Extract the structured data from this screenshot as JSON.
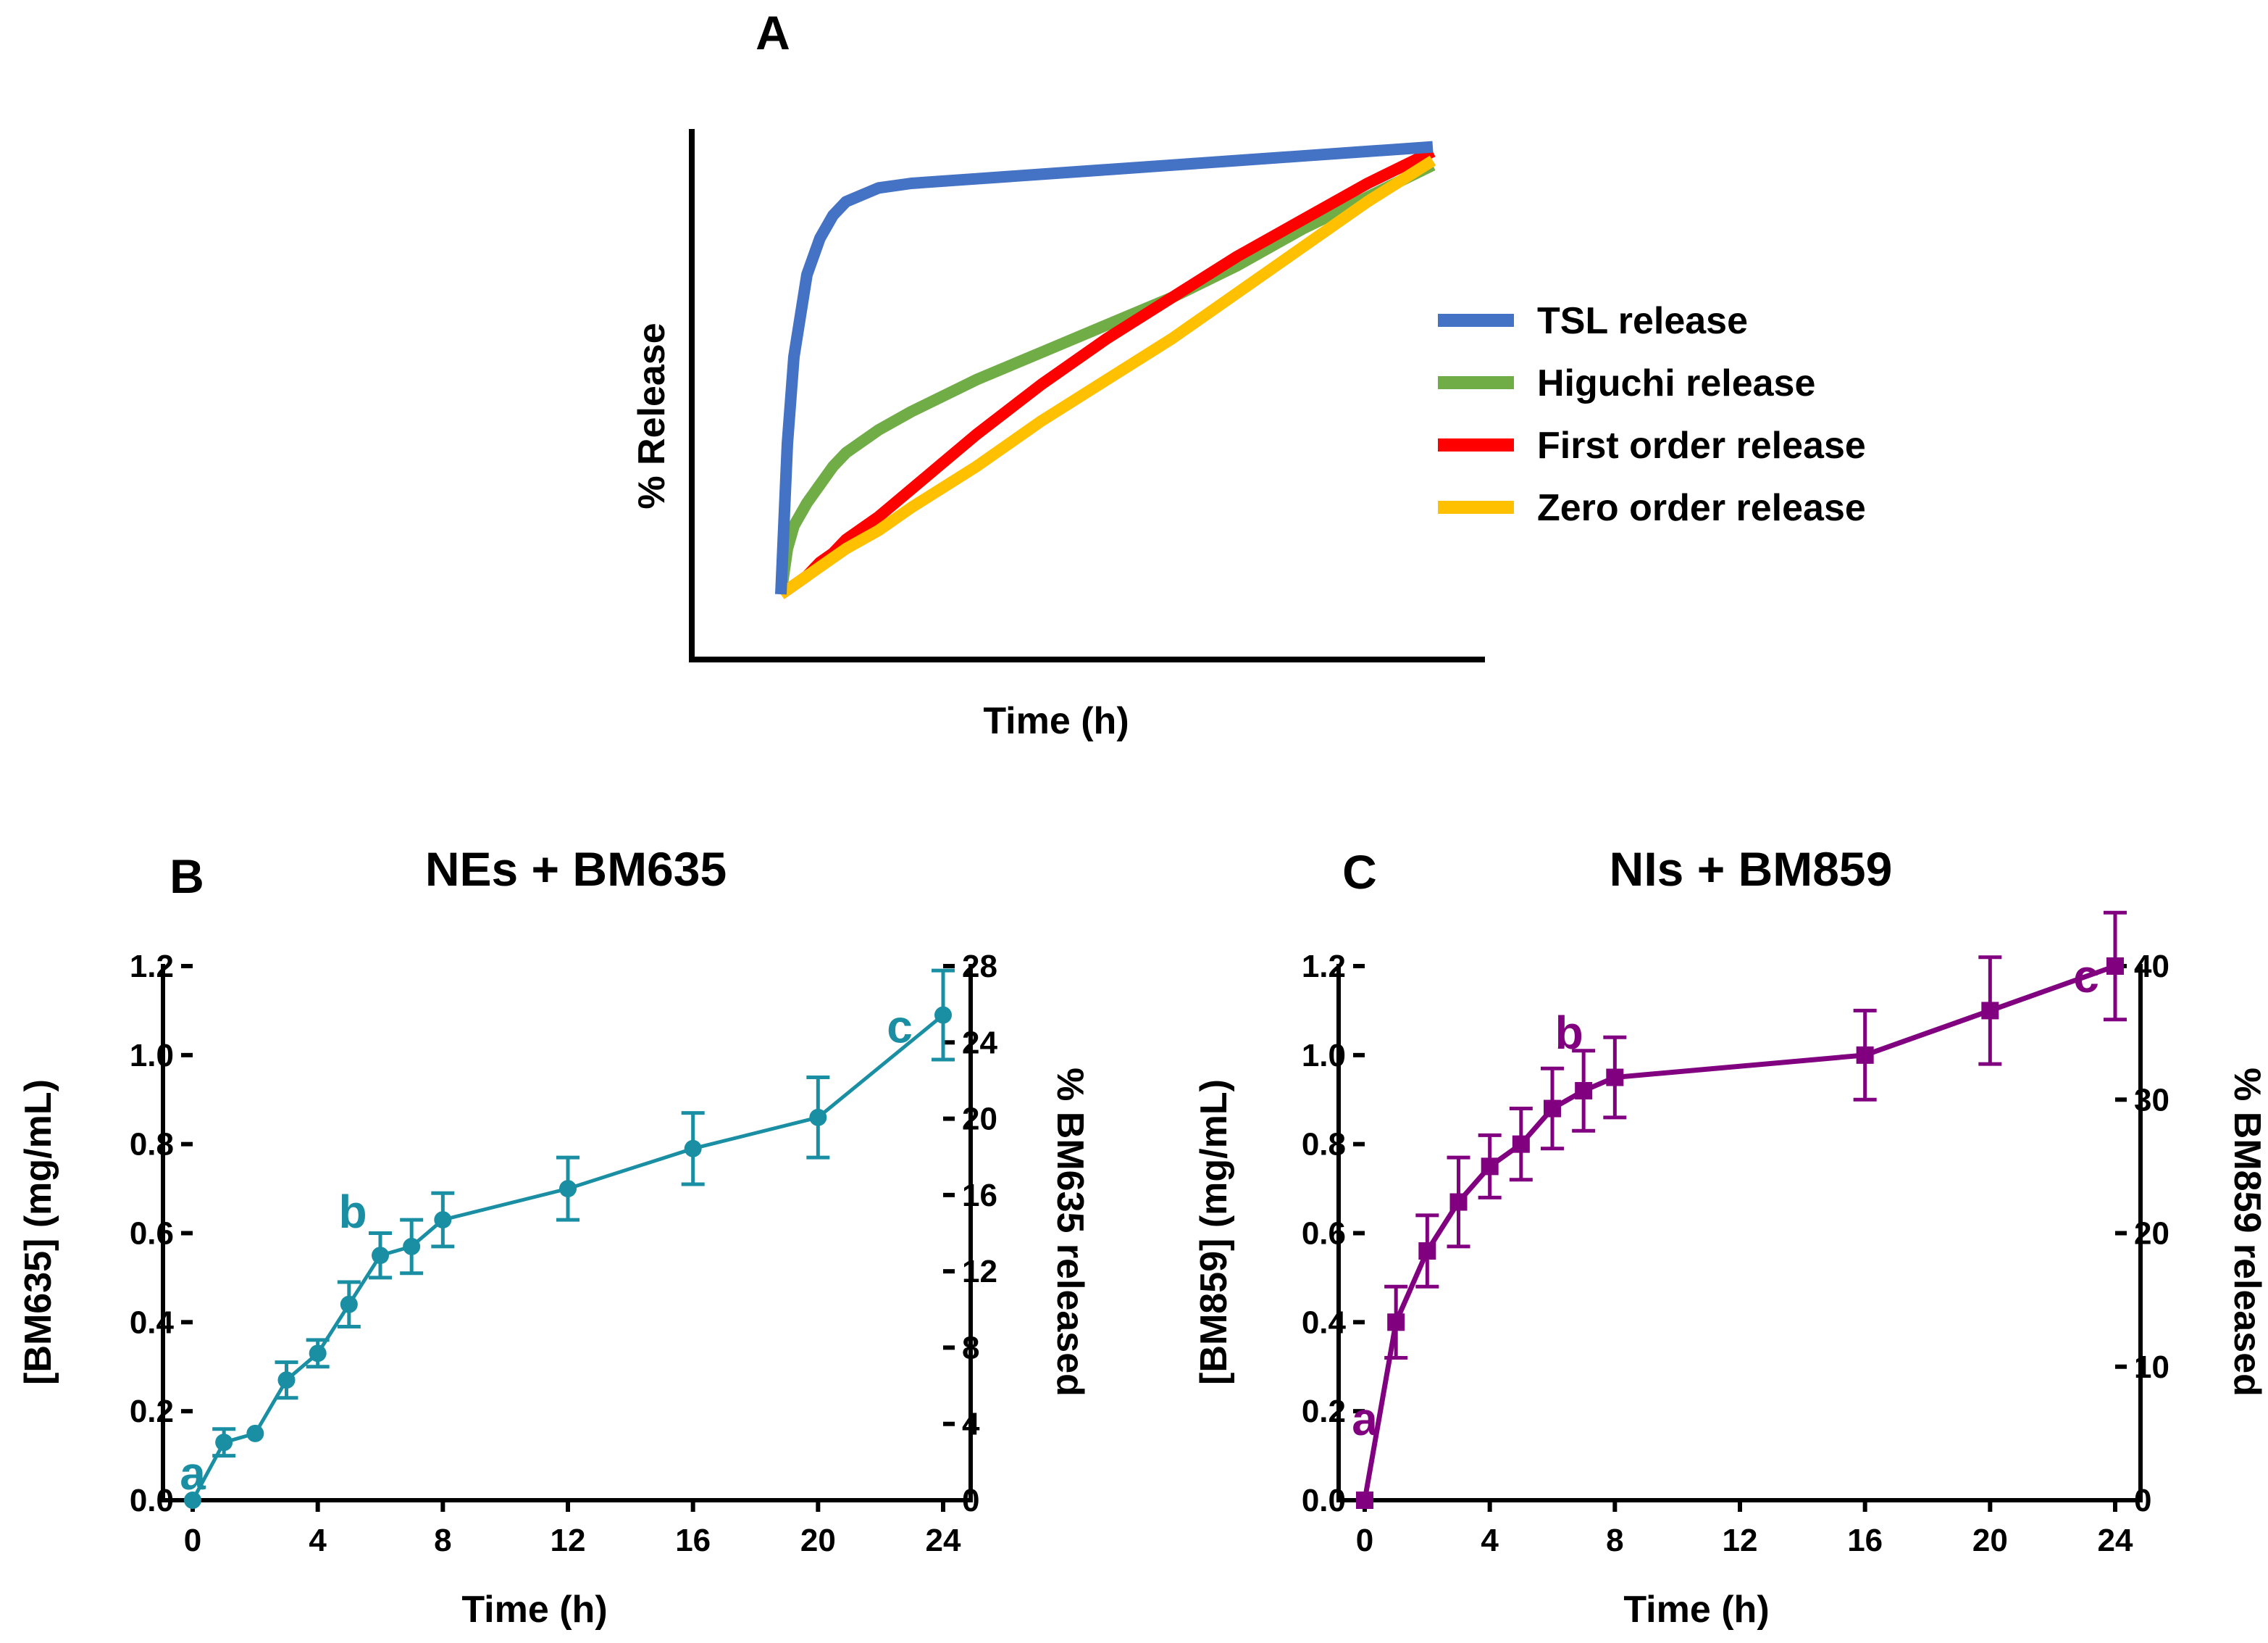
{
  "chart_data": [
    {
      "panel": "A",
      "type": "line",
      "panel_label": "A",
      "xlabel": "Time (h)",
      "ylabel": "% Release",
      "x": [
        0,
        0.01,
        0.02,
        0.04,
        0.06,
        0.08,
        0.1,
        0.15,
        0.2,
        0.3,
        0.4,
        0.5,
        0.6,
        0.7,
        0.8,
        0.9,
        1.0
      ],
      "series": [
        {
          "name": "TSL release",
          "color": "#4472c4",
          "values": [
            0,
            0.33,
            0.52,
            0.7,
            0.78,
            0.83,
            0.86,
            0.89,
            0.9,
            0.91,
            0.92,
            0.93,
            0.94,
            0.95,
            0.96,
            0.97,
            0.98
          ]
        },
        {
          "name": "Higuchi release",
          "color": "#70ad47",
          "values": [
            0,
            0.1,
            0.15,
            0.2,
            0.24,
            0.28,
            0.31,
            0.36,
            0.4,
            0.47,
            0.53,
            0.59,
            0.65,
            0.72,
            0.8,
            0.87,
            0.94
          ]
        },
        {
          "name": "First order release",
          "color": "#ff0000",
          "values": [
            0,
            0.01,
            0.02,
            0.04,
            0.07,
            0.09,
            0.12,
            0.17,
            0.23,
            0.35,
            0.46,
            0.56,
            0.65,
            0.74,
            0.82,
            0.9,
            0.97
          ]
        },
        {
          "name": "Zero order release",
          "color": "#ffc000",
          "values": [
            0,
            0.01,
            0.02,
            0.04,
            0.06,
            0.08,
            0.1,
            0.14,
            0.19,
            0.28,
            0.38,
            0.47,
            0.56,
            0.66,
            0.76,
            0.86,
            0.95
          ]
        }
      ]
    },
    {
      "panel": "B",
      "type": "line",
      "panel_label": "B",
      "title": "NEs + BM635",
      "xlabel": "Time (h)",
      "ylabel": "[BM635] (mg/mL)",
      "ylabel_right": "% BM635 released",
      "color": "#1a8fa3",
      "marker": "circle",
      "xlim": [
        0,
        24
      ],
      "xticks": [
        0,
        4,
        8,
        12,
        16,
        20,
        24
      ],
      "ylim": [
        0,
        1.2
      ],
      "yticks": [
        0.0,
        0.2,
        0.4,
        0.6,
        0.8,
        1.0,
        1.2
      ],
      "ytick_labels": [
        "0.0",
        "0.2",
        "0.4",
        "0.6",
        "0.8",
        "1.0",
        "1.2"
      ],
      "y2lim": [
        0,
        28
      ],
      "y2ticks": [
        0,
        4,
        8,
        12,
        16,
        20,
        24,
        28
      ],
      "x": [
        0,
        1,
        2,
        3,
        4,
        5,
        6,
        7,
        8,
        12,
        16,
        20,
        24
      ],
      "y": [
        0.0,
        0.13,
        0.15,
        0.27,
        0.33,
        0.44,
        0.55,
        0.57,
        0.63,
        0.7,
        0.79,
        0.86,
        1.09
      ],
      "err": [
        0.0,
        0.03,
        0.0,
        0.04,
        0.03,
        0.05,
        0.05,
        0.06,
        0.06,
        0.07,
        0.08,
        0.09,
        0.1
      ],
      "annotations": [
        {
          "text": "a",
          "x": 0,
          "y": 0.0
        },
        {
          "text": "b",
          "x": 6,
          "y": 0.55
        },
        {
          "text": "c",
          "x": 24,
          "y": 1.09
        }
      ]
    },
    {
      "panel": "C",
      "type": "line",
      "panel_label": "C",
      "title": "NIs + BM859",
      "xlabel": "Time (h)",
      "ylabel": "[BM859] (mg/mL)",
      "ylabel_right": "% BM859 released",
      "color": "#800080",
      "marker": "square",
      "xlim": [
        0,
        24
      ],
      "xticks": [
        0,
        4,
        8,
        12,
        16,
        20,
        24
      ],
      "ylim": [
        0,
        1.2
      ],
      "yticks": [
        0.0,
        0.2,
        0.4,
        0.6,
        0.8,
        1.0,
        1.2
      ],
      "ytick_labels": [
        "0.0",
        "0.2",
        "0.4",
        "0.6",
        "0.8",
        "1.0",
        "1.2"
      ],
      "y2lim": [
        0,
        40
      ],
      "y2ticks": [
        0,
        10,
        20,
        30,
        40
      ],
      "x": [
        0,
        1,
        2,
        3,
        4,
        5,
        6,
        7,
        8,
        16,
        20,
        24
      ],
      "y": [
        0.0,
        0.4,
        0.56,
        0.67,
        0.75,
        0.8,
        0.88,
        0.92,
        0.95,
        1.0,
        1.1,
        1.2
      ],
      "err": [
        0.0,
        0.08,
        0.08,
        0.1,
        0.07,
        0.08,
        0.09,
        0.09,
        0.09,
        0.1,
        0.12,
        0.12
      ],
      "annotations": [
        {
          "text": "a",
          "x": 0,
          "y": 0.0
        },
        {
          "text": "b",
          "x": 7,
          "y": 0.92
        },
        {
          "text": "c",
          "x": 24,
          "y": 1.2
        }
      ]
    }
  ]
}
